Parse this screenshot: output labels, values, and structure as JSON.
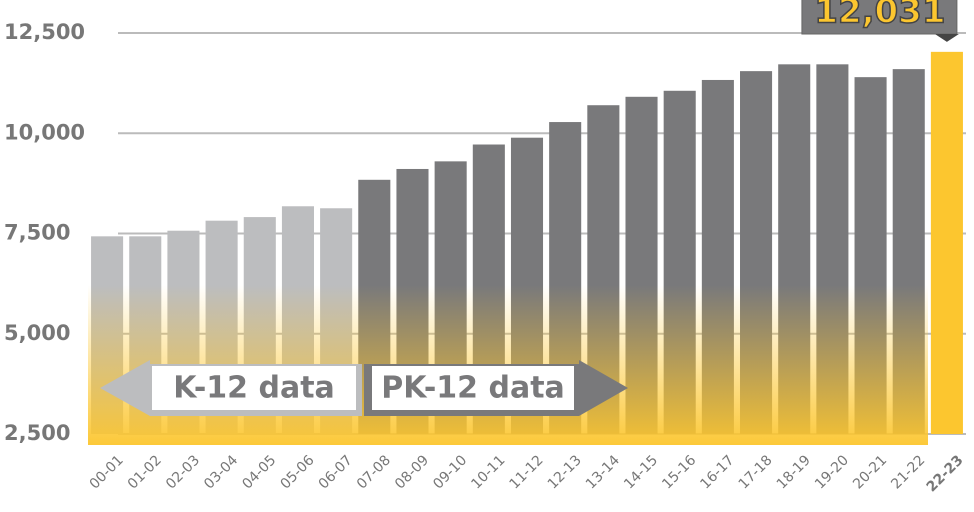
{
  "chart_data": {
    "type": "bar",
    "categories": [
      "00-01",
      "01-02",
      "02-03",
      "03-04",
      "04-05",
      "05-06",
      "06-07",
      "07-08",
      "08-09",
      "09-10",
      "10-11",
      "11-12",
      "12-13",
      "13-14",
      "14-15",
      "15-16",
      "16-17",
      "17-18",
      "18-19",
      "19-20",
      "20-21",
      "21-22",
      "22-23"
    ],
    "values": [
      7430,
      7430,
      7570,
      7820,
      7910,
      8180,
      8130,
      8840,
      9110,
      9300,
      9720,
      9890,
      10280,
      10700,
      10910,
      11060,
      11330,
      11550,
      11720,
      11720,
      11400,
      11600,
      12031
    ],
    "value_labels": [
      null,
      null,
      null,
      null,
      null,
      null,
      null,
      null,
      null,
      null,
      null,
      null,
      null,
      null,
      null,
      null,
      null,
      null,
      null,
      null,
      null,
      null,
      "12,031"
    ],
    "colors": [
      "#bcbdbf",
      "#bcbdbf",
      "#bcbdbf",
      "#bcbdbf",
      "#bcbdbf",
      "#bcbdbf",
      "#bcbdbf",
      "#79797b",
      "#79797b",
      "#79797b",
      "#79797b",
      "#79797b",
      "#79797b",
      "#79797b",
      "#79797b",
      "#79797b",
      "#79797b",
      "#79797b",
      "#79797b",
      "#79797b",
      "#79797b",
      "#79797b",
      "#fcc62f"
    ],
    "ylim": [
      2500,
      13000
    ],
    "yticks": [
      {
        "value": 2500,
        "label": "2,500"
      },
      {
        "value": 5000,
        "label": "5,000"
      },
      {
        "value": 7500,
        "label": "7,500"
      },
      {
        "value": 10000,
        "label": "10,000"
      },
      {
        "value": 12500,
        "label": "12,500"
      }
    ],
    "grid": true,
    "annotations": [
      "K-12 data",
      "PK-12 data"
    ]
  }
}
